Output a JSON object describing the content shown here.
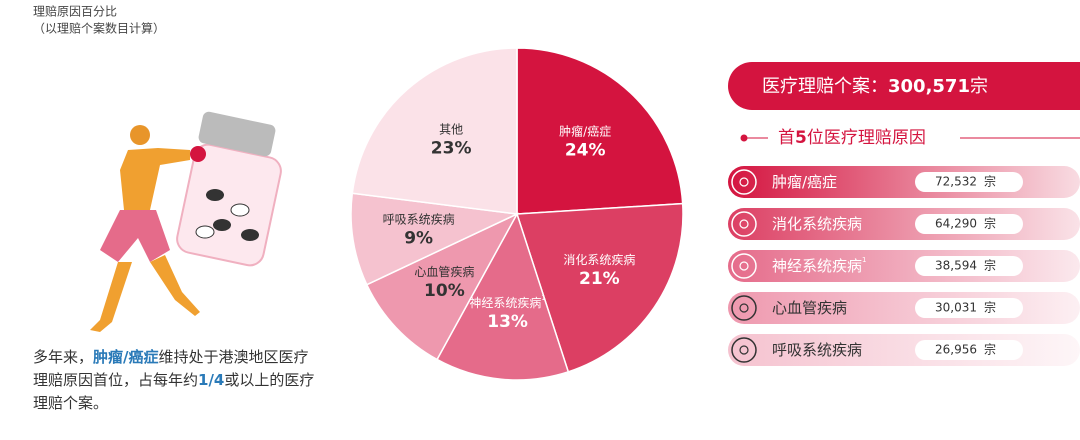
{
  "header": {
    "title": "理赔原因百分比",
    "subtitle": "（以理赔个案数目计算）"
  },
  "chart_data": {
    "type": "pie",
    "categories": [
      "肿瘤/癌症",
      "消化系统疾病",
      "神经系统疾病",
      "心血管疾病",
      "呼吸系统疾病",
      "其他"
    ],
    "category_notes": [
      null,
      null,
      "1",
      null,
      null,
      null
    ],
    "values": [
      24,
      21,
      13,
      10,
      9,
      23
    ],
    "value_labels": [
      "24%",
      "21%",
      "13%",
      "10%",
      "9%",
      "23%"
    ],
    "colors": [
      "#d4143f",
      "#dc3f63",
      "#e56b8a",
      "#ee98ae",
      "#f5c2cf",
      "#fbe2e8"
    ]
  },
  "summary": {
    "parts": [
      "多年来，",
      "肿瘤/癌症",
      "维持处于港澳地区医疗理赔原因首位，占每年约",
      "1/4",
      "或以上的医疗理赔个案。"
    ]
  },
  "panel": {
    "banner_label": "医疗理赔个案：",
    "banner_value": "300,571",
    "banner_unit": "宗",
    "top_title_parts": [
      "首",
      "5",
      "位医疗理赔原因"
    ],
    "rows": [
      {
        "name": "肿瘤/癌症",
        "note": null,
        "count": "72,532",
        "unit": "宗"
      },
      {
        "name": "消化系统疾病",
        "note": null,
        "count": "64,290",
        "unit": "宗"
      },
      {
        "name": "神经系统疾病",
        "note": "1",
        "count": "38,594",
        "unit": "宗"
      },
      {
        "name": "心血管疾病",
        "note": null,
        "count": "30,031",
        "unit": "宗"
      },
      {
        "name": "呼吸系统疾病",
        "note": null,
        "count": "26,956",
        "unit": "宗"
      }
    ]
  }
}
